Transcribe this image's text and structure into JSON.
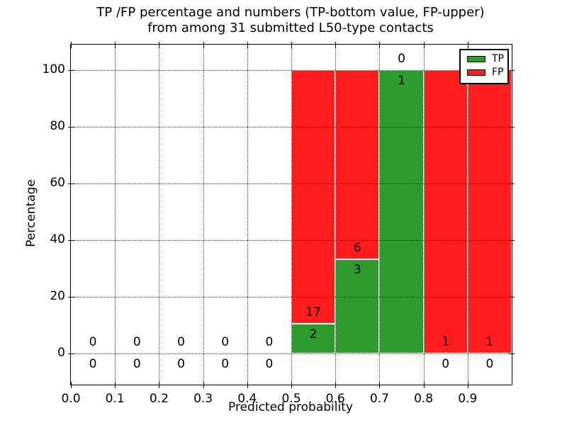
{
  "title": {
    "line1": "TP /FP percentage and numbers (TP-bottom value, FP-upper)",
    "line2": "from among 31 submitted L50-type contacts"
  },
  "chart_data": {
    "type": "bar",
    "stacked": true,
    "title": "TP /FP percentage and numbers (TP-bottom value, FP-upper) from among 31 submitted L50-type contacts",
    "xlabel": "Predicted probability",
    "ylabel": "Percentage",
    "xlim": [
      0.0,
      1.0
    ],
    "ylim": [
      -11,
      109
    ],
    "grid": "dotted",
    "total_contacts": 31,
    "x_bin_edges": [
      0.0,
      0.1,
      0.2,
      0.3,
      0.4,
      0.5,
      0.6,
      0.7,
      0.8,
      0.9,
      1.0
    ],
    "x_tick_values": [
      0.0,
      0.1,
      0.2,
      0.3,
      0.4,
      0.5,
      0.6,
      0.7,
      0.8,
      0.9
    ],
    "x_tick_labels": [
      "0.0",
      "0.1",
      "0.2",
      "0.3",
      "0.4",
      "0.5",
      "0.6",
      "0.7",
      "0.8",
      "0.9"
    ],
    "y_tick_values": [
      0,
      20,
      40,
      60,
      80,
      100
    ],
    "y_tick_labels": [
      "0",
      "20",
      "40",
      "60",
      "80",
      "100"
    ],
    "series": [
      {
        "name": "TP",
        "color": "#2e9b2e",
        "counts": [
          0,
          0,
          0,
          0,
          0,
          2,
          3,
          1,
          0,
          0
        ],
        "percent": [
          0,
          0,
          0,
          0,
          0,
          10.53,
          33.33,
          100,
          0,
          0
        ],
        "label_position": "below boundary (bottom value)"
      },
      {
        "name": "FP",
        "color": "#ff1c1c",
        "counts": [
          0,
          0,
          0,
          0,
          0,
          17,
          6,
          0,
          1,
          1
        ],
        "percent": [
          0,
          0,
          0,
          0,
          0,
          89.47,
          66.67,
          0,
          100,
          100
        ],
        "label_position": "above boundary (upper value)"
      }
    ],
    "legend": {
      "position": "upper right",
      "items": [
        {
          "label": "TP",
          "color": "#2e9b2e"
        },
        {
          "label": "FP",
          "color": "#ff1c1c"
        }
      ]
    }
  }
}
